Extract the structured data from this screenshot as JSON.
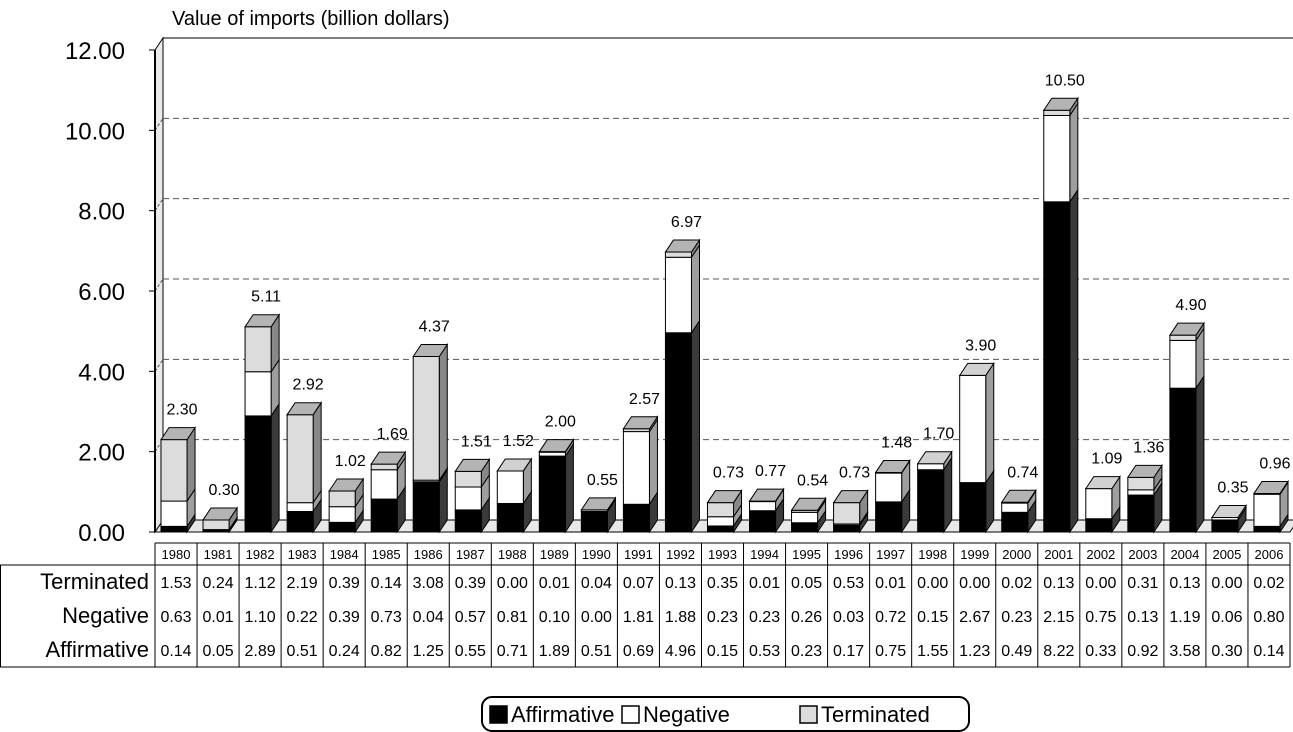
{
  "chart_data": {
    "type": "bar",
    "stacked": true,
    "title": "Value of imports (billion dollars)",
    "ylim": [
      0,
      12
    ],
    "yticks": [
      "0.00",
      "2.00",
      "4.00",
      "6.00",
      "8.00",
      "10.00",
      "12.00"
    ],
    "categories": [
      "1980",
      "1981",
      "1982",
      "1983",
      "1984",
      "1985",
      "1986",
      "1987",
      "1988",
      "1989",
      "1990",
      "1991",
      "1992",
      "1993",
      "1994",
      "1995",
      "1996",
      "1997",
      "1998",
      "1999",
      "2000",
      "2001",
      "2002",
      "2003",
      "2004",
      "2005",
      "2006"
    ],
    "totals": [
      "2.30",
      "0.30",
      "5.11",
      "2.92",
      "1.02",
      "1.69",
      "4.37",
      "1.51",
      "1.52",
      "2.00",
      "0.55",
      "2.57",
      "6.97",
      "0.73",
      "0.77",
      "0.54",
      "0.73",
      "1.48",
      "1.70",
      "3.90",
      "0.74",
      "10.50",
      "1.09",
      "1.36",
      "4.90",
      "0.35",
      "0.96"
    ],
    "series": [
      {
        "name": "Affirmative",
        "color": "#000000",
        "values": [
          0.14,
          0.05,
          2.89,
          0.51,
          0.24,
          0.82,
          1.25,
          0.55,
          0.71,
          1.89,
          0.51,
          0.69,
          4.96,
          0.15,
          0.53,
          0.23,
          0.17,
          0.75,
          1.55,
          1.23,
          0.49,
          8.22,
          0.33,
          0.92,
          3.58,
          0.3,
          0.14
        ]
      },
      {
        "name": "Negative",
        "color": "#ffffff",
        "values": [
          0.63,
          0.01,
          1.1,
          0.22,
          0.39,
          0.73,
          0.04,
          0.57,
          0.81,
          0.1,
          0.0,
          1.81,
          1.88,
          0.23,
          0.23,
          0.26,
          0.03,
          0.72,
          0.15,
          2.67,
          0.23,
          2.15,
          0.75,
          0.13,
          1.19,
          0.06,
          0.8
        ]
      },
      {
        "name": "Terminated",
        "color": "#dcdcdc",
        "values": [
          1.53,
          0.24,
          1.12,
          2.19,
          0.39,
          0.14,
          3.08,
          0.39,
          0.0,
          0.01,
          0.04,
          0.07,
          0.13,
          0.35,
          0.01,
          0.05,
          0.53,
          0.01,
          0.0,
          0.0,
          0.02,
          0.13,
          0.0,
          0.31,
          0.13,
          0.0,
          0.02
        ]
      }
    ],
    "table_rows": [
      "Terminated",
      "Negative",
      "Affirmative"
    ],
    "legend": [
      "Affirmative",
      "Negative",
      "Terminated"
    ],
    "legend_position": "bottom",
    "grid": true
  }
}
